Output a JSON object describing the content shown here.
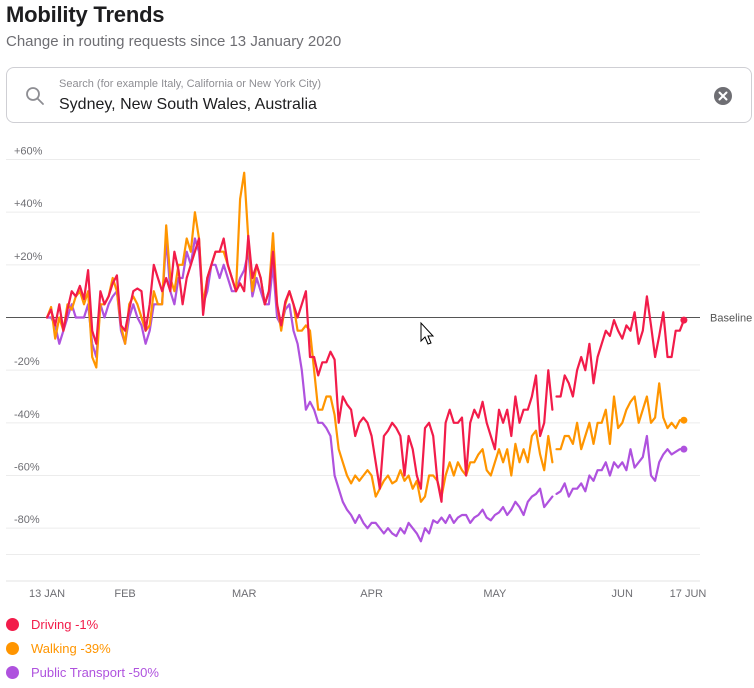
{
  "header": {
    "title": "Mobility Trends",
    "subtitle": "Change in routing requests since 13 January 2020"
  },
  "search": {
    "placeholder": "Search (for example Italy, California or New York City)",
    "value": "Sydney, New South Wales, Australia",
    "search_icon": "search-icon",
    "clear_icon": "clear-icon"
  },
  "colors": {
    "driving": "#f21c4a",
    "walking": "#ff9500",
    "transit": "#af52de"
  },
  "legend": [
    {
      "label": "Driving -1%",
      "color": "#f21c4a"
    },
    {
      "label": "Walking -39%",
      "color": "#ff9500"
    },
    {
      "label": "Public Transport -50%",
      "color": "#af52de"
    }
  ],
  "chart_data": {
    "type": "line",
    "title": "Mobility Trends",
    "subtitle": "Change in routing requests since 13 January 2020",
    "xlabel": "",
    "ylabel": "",
    "ylim": [
      -100,
      60
    ],
    "y_ticks": [
      60,
      40,
      20,
      -20,
      -40,
      -60,
      -80
    ],
    "y_tick_labels": [
      "+60%",
      "+40%",
      "+20%",
      "-20%",
      "-40%",
      "-60%",
      "-80%"
    ],
    "x_ticks": [
      {
        "day": 0,
        "label": "13 JAN"
      },
      {
        "day": 19,
        "label": "FEB"
      },
      {
        "day": 48,
        "label": "MAR"
      },
      {
        "day": 79,
        "label": "APR"
      },
      {
        "day": 109,
        "label": "MAY"
      },
      {
        "day": 140,
        "label": "JUN"
      },
      {
        "day": 156,
        "label": "17 JUN"
      }
    ],
    "x_range": [
      0,
      156
    ],
    "baseline": {
      "value": 0,
      "label": "Baseline"
    },
    "series": [
      {
        "name": "Driving",
        "color": "#f21c4a",
        "end_value": -1,
        "values": [
          0,
          3,
          -3,
          5,
          -5,
          3,
          10,
          8,
          12,
          7,
          18,
          -5,
          -10,
          10,
          5,
          8,
          13,
          16,
          -3,
          -5,
          3,
          10,
          11,
          10,
          -5,
          5,
          20,
          15,
          10,
          15,
          10,
          25,
          18,
          5,
          15,
          20,
          25,
          30,
          1,
          15,
          20,
          25,
          25,
          30,
          20,
          15,
          10,
          13,
          10,
          31,
          15,
          20,
          15,
          5,
          10,
          25,
          5,
          -3,
          6,
          10,
          5,
          0,
          5,
          10,
          -15,
          -15,
          -22,
          -17,
          -17,
          -13,
          -16,
          -40,
          -30,
          -33,
          -35,
          -45,
          -40,
          -38,
          -40,
          -45,
          -55,
          -65,
          -45,
          -43,
          -40,
          -42,
          -45,
          -60,
          -45,
          -50,
          -60,
          -65,
          -42,
          -40,
          -45,
          -62,
          -70,
          -40,
          -35,
          -40,
          -40,
          -38,
          -60,
          -40,
          -35,
          -38,
          -32,
          -40,
          -45,
          -50,
          -35,
          -40,
          -35,
          -45,
          -30,
          -40,
          -35,
          -35,
          -30,
          -22,
          -45,
          -40,
          -20,
          -35,
          -30,
          -30,
          -22,
          -25,
          -30,
          -20,
          -15,
          -20,
          -10,
          -25,
          -15,
          -10,
          -5,
          -7,
          -1,
          -5,
          -8,
          -3,
          -5,
          2,
          -10,
          -5,
          8,
          -3,
          -15,
          -7,
          2,
          -15,
          -15,
          -5,
          -5,
          -1
        ],
        "gaps": [
          [
            123,
            124
          ]
        ]
      },
      {
        "name": "Walking",
        "color": "#ff9500",
        "end_value": -39,
        "values": [
          0,
          4,
          -8,
          0,
          -5,
          5,
          3,
          8,
          10,
          5,
          10,
          -15,
          -19,
          5,
          5,
          8,
          15,
          10,
          -3,
          -10,
          5,
          8,
          5,
          0,
          -5,
          -3,
          10,
          5,
          5,
          35,
          15,
          10,
          20,
          20,
          30,
          25,
          40,
          30,
          5,
          15,
          20,
          25,
          25,
          25,
          20,
          15,
          10,
          45,
          55,
          30,
          10,
          20,
          15,
          5,
          10,
          32,
          5,
          -5,
          5,
          10,
          5,
          -5,
          -5,
          -3,
          -5,
          -20,
          -35,
          -35,
          -30,
          -30,
          -37,
          -50,
          -55,
          -60,
          -63,
          -60,
          -62,
          -60,
          -58,
          -60,
          -68,
          -65,
          -62,
          -60,
          -63,
          -62,
          -58,
          -62,
          -60,
          -65,
          -62,
          -70,
          -68,
          -60,
          -60,
          -62,
          -68,
          -60,
          -55,
          -60,
          -55,
          -58,
          -60,
          -55,
          -55,
          -52,
          -50,
          -58,
          -60,
          -55,
          -50,
          -55,
          -50,
          -60,
          -48,
          -55,
          -50,
          -55,
          -45,
          -43,
          -52,
          -58,
          -45,
          -55,
          -50,
          -50,
          -45,
          -45,
          -48,
          -40,
          -50,
          -45,
          -40,
          -48,
          -40,
          -40,
          -35,
          -48,
          -30,
          -42,
          -40,
          -35,
          -32,
          -30,
          -40,
          -35,
          -30,
          -40,
          -38,
          -25,
          -38,
          -42,
          -40,
          -42,
          -39,
          -39
        ],
        "gaps": [
          [
            123,
            124
          ]
        ]
      },
      {
        "name": "Public Transport",
        "color": "#af52de",
        "end_value": -50,
        "values": [
          0,
          0,
          -3,
          -10,
          -5,
          0,
          5,
          0,
          0,
          0,
          5,
          -10,
          -15,
          5,
          0,
          5,
          8,
          10,
          -5,
          -10,
          0,
          5,
          0,
          -3,
          -10,
          -5,
          5,
          5,
          5,
          30,
          10,
          5,
          15,
          15,
          25,
          20,
          30,
          25,
          5,
          10,
          20,
          20,
          15,
          20,
          15,
          10,
          10,
          15,
          18,
          25,
          8,
          15,
          10,
          5,
          5,
          20,
          0,
          -3,
          3,
          5,
          -5,
          -10,
          -20,
          -35,
          -32,
          -35,
          -40,
          -40,
          -42,
          -45,
          -60,
          -65,
          -70,
          -73,
          -75,
          -78,
          -75,
          -78,
          -80,
          -78,
          -78,
          -80,
          -82,
          -80,
          -82,
          -83,
          -80,
          -82,
          -78,
          -80,
          -82,
          -85,
          -80,
          -82,
          -77,
          -78,
          -76,
          -78,
          -75,
          -78,
          -76,
          -75,
          -75,
          -78,
          -76,
          -75,
          -73,
          -76,
          -77,
          -75,
          -74,
          -72,
          -75,
          -73,
          -70,
          -72,
          -75,
          -70,
          -68,
          -67,
          -65,
          -72,
          -70,
          -68,
          -67,
          -66,
          -63,
          -68,
          -65,
          -65,
          -63,
          -66,
          -60,
          -62,
          -58,
          -58,
          -55,
          -60,
          -55,
          -57,
          -55,
          -58,
          -50,
          -57,
          -55,
          -53,
          -45,
          -60,
          -62,
          -55,
          -52,
          -50,
          -52,
          -51,
          -50,
          -50
        ],
        "gaps": [
          [
            123,
            124
          ]
        ]
      }
    ]
  }
}
